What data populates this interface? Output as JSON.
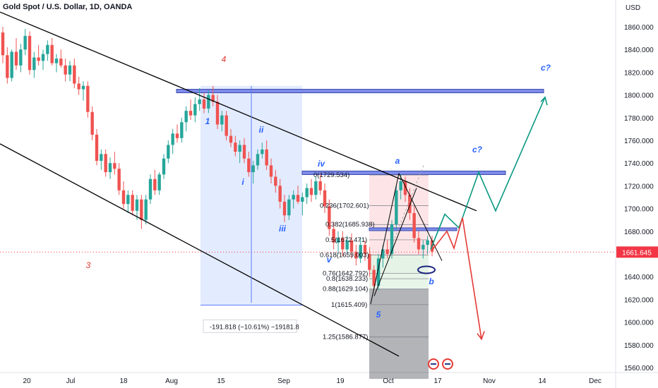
{
  "header": {
    "title": "Gold Spot / U.S. Dollar, 1D, OANDA"
  },
  "chart_data": {
    "type": "candlestick",
    "currency_label": "USD",
    "y_ticks": [
      1560,
      1580,
      1600,
      1620,
      1640,
      1660,
      1680,
      1700,
      1720,
      1740,
      1760,
      1780,
      1800,
      1820,
      1840,
      1860
    ],
    "y_tick_labels": [
      "1560.000",
      "1580.000",
      "1600.000",
      "1620.000",
      "1640.000",
      "1660.000",
      "1680.000",
      "1700.000",
      "1720.000",
      "1740.000",
      "1760.000",
      "1780.000",
      "1800.000",
      "1820.000",
      "1840.000",
      "1860.000"
    ],
    "x_ticks": [
      "20",
      "Jul",
      "18",
      "Aug",
      "15",
      "Sep",
      "19",
      "Oct",
      "17",
      "Nov",
      "14",
      "Dec"
    ],
    "current_price": "1661.645",
    "colors": {
      "up": "#26a69a",
      "down": "#ef5350",
      "price_tag": "#f23645",
      "axis_text": "#131722",
      "wave": "#2962ff",
      "red_wave": "#e53935",
      "teal": "#089981"
    },
    "ohlc": [
      [
        1855,
        1860,
        1828,
        1835
      ],
      [
        1835,
        1842,
        1810,
        1815
      ],
      [
        1815,
        1840,
        1812,
        1838
      ],
      [
        1838,
        1850,
        1822,
        1826
      ],
      [
        1826,
        1845,
        1820,
        1840
      ],
      [
        1840,
        1858,
        1835,
        1852
      ],
      [
        1852,
        1856,
        1818,
        1822
      ],
      [
        1822,
        1838,
        1815,
        1833
      ],
      [
        1833,
        1844,
        1826,
        1830
      ],
      [
        1830,
        1840,
        1822,
        1836
      ],
      [
        1836,
        1848,
        1830,
        1844
      ],
      [
        1844,
        1850,
        1826,
        1828
      ],
      [
        1828,
        1836,
        1820,
        1832
      ],
      [
        1832,
        1840,
        1824,
        1826
      ],
      [
        1826,
        1832,
        1812,
        1818
      ],
      [
        1818,
        1830,
        1812,
        1826
      ],
      [
        1826,
        1832,
        1806,
        1810
      ],
      [
        1810,
        1816,
        1800,
        1805
      ],
      [
        1805,
        1812,
        1795,
        1808
      ],
      [
        1808,
        1812,
        1780,
        1785
      ],
      [
        1785,
        1790,
        1760,
        1765
      ],
      [
        1765,
        1770,
        1738,
        1742
      ],
      [
        1742,
        1752,
        1734,
        1748
      ],
      [
        1748,
        1752,
        1728,
        1732
      ],
      [
        1732,
        1745,
        1726,
        1740
      ],
      [
        1740,
        1750,
        1730,
        1735
      ],
      [
        1735,
        1740,
        1712,
        1716
      ],
      [
        1716,
        1724,
        1700,
        1704
      ],
      [
        1704,
        1716,
        1696,
        1712
      ],
      [
        1712,
        1716,
        1694,
        1698
      ],
      [
        1698,
        1712,
        1690,
        1708
      ],
      [
        1708,
        1712,
        1682,
        1690
      ],
      [
        1690,
        1712,
        1686,
        1708
      ],
      [
        1708,
        1730,
        1704,
        1726
      ],
      [
        1726,
        1734,
        1712,
        1716
      ],
      [
        1716,
        1732,
        1712,
        1730
      ],
      [
        1730,
        1748,
        1726,
        1744
      ],
      [
        1744,
        1760,
        1740,
        1756
      ],
      [
        1756,
        1770,
        1748,
        1766
      ],
      [
        1766,
        1774,
        1758,
        1762
      ],
      [
        1762,
        1780,
        1758,
        1776
      ],
      [
        1776,
        1790,
        1768,
        1786
      ],
      [
        1786,
        1796,
        1778,
        1782
      ],
      [
        1782,
        1798,
        1776,
        1792
      ],
      [
        1792,
        1806,
        1786,
        1796
      ],
      [
        1796,
        1802,
        1784,
        1788
      ],
      [
        1788,
        1804,
        1784,
        1800
      ],
      [
        1800,
        1808,
        1790,
        1794
      ],
      [
        1794,
        1800,
        1770,
        1774
      ],
      [
        1774,
        1786,
        1768,
        1782
      ],
      [
        1782,
        1786,
        1760,
        1764
      ],
      [
        1764,
        1770,
        1754,
        1758
      ],
      [
        1758,
        1764,
        1746,
        1750
      ],
      [
        1750,
        1760,
        1740,
        1756
      ],
      [
        1756,
        1762,
        1740,
        1744
      ],
      [
        1744,
        1750,
        1728,
        1732
      ],
      [
        1732,
        1742,
        1722,
        1738
      ],
      [
        1738,
        1752,
        1734,
        1748
      ],
      [
        1748,
        1758,
        1744,
        1752
      ],
      [
        1752,
        1760,
        1734,
        1738
      ],
      [
        1738,
        1744,
        1722,
        1728
      ],
      [
        1728,
        1734,
        1714,
        1720
      ],
      [
        1720,
        1726,
        1700,
        1706
      ],
      [
        1706,
        1712,
        1688,
        1694
      ],
      [
        1694,
        1712,
        1690,
        1708
      ],
      [
        1708,
        1716,
        1700,
        1712
      ],
      [
        1712,
        1720,
        1704,
        1706
      ],
      [
        1706,
        1714,
        1694,
        1710
      ],
      [
        1710,
        1722,
        1704,
        1718
      ],
      [
        1718,
        1726,
        1706,
        1712
      ],
      [
        1712,
        1728,
        1708,
        1724
      ],
      [
        1724,
        1730,
        1712,
        1716
      ],
      [
        1716,
        1722,
        1696,
        1702
      ],
      [
        1702,
        1708,
        1676,
        1682
      ],
      [
        1682,
        1688,
        1664,
        1670
      ],
      [
        1670,
        1680,
        1660,
        1674
      ],
      [
        1674,
        1680,
        1658,
        1664
      ],
      [
        1664,
        1676,
        1660,
        1672
      ],
      [
        1672,
        1678,
        1656,
        1662
      ],
      [
        1662,
        1668,
        1650,
        1656
      ],
      [
        1656,
        1674,
        1652,
        1668
      ],
      [
        1668,
        1672,
        1654,
        1660
      ],
      [
        1660,
        1666,
        1640,
        1646
      ],
      [
        1646,
        1650,
        1628,
        1632
      ],
      [
        1632,
        1660,
        1628,
        1656
      ],
      [
        1656,
        1668,
        1648,
        1664
      ],
      [
        1664,
        1672,
        1656,
        1660
      ],
      [
        1660,
        1690,
        1656,
        1686
      ],
      [
        1686,
        1720,
        1682,
        1716
      ],
      [
        1716,
        1730,
        1708,
        1724
      ],
      [
        1724,
        1728,
        1706,
        1712
      ],
      [
        1712,
        1718,
        1690,
        1696
      ],
      [
        1696,
        1702,
        1670,
        1674
      ],
      [
        1674,
        1680,
        1660,
        1664
      ],
      [
        1664,
        1672,
        1656,
        1668
      ],
      [
        1668,
        1676,
        1660,
        1672
      ],
      [
        1672,
        1676,
        1658,
        1662
      ]
    ],
    "annotations": {
      "waves_blue": [
        "1",
        "i",
        "ii",
        "iii",
        "iv",
        "v",
        "5",
        "a",
        "b",
        "c?",
        "c?"
      ],
      "waves_red": [
        "4",
        "3"
      ],
      "measure_label": "-191.818 (−10.61%) −19181.8",
      "fib_levels": [
        {
          "label": "0(1729.534)",
          "price": 1729.534
        },
        {
          "label": "0.236(1702.601)",
          "price": 1702.601
        },
        {
          "label": "0.382(1685.938)",
          "price": 1685.938
        },
        {
          "label": "0.5(1672.471)",
          "price": 1672.471
        },
        {
          "label": "0.618(1659.003)",
          "price": 1659.003
        },
        {
          "label": "0.76(1642.792)",
          "price": 1642.792
        },
        {
          "label": "0.8(1638.233)",
          "price": 1638.233
        },
        {
          "label": "0.88(1629.104)",
          "price": 1629.104
        },
        {
          "label": "1(1615.409)",
          "price": 1615.409
        },
        {
          "label": "1.25(1586.877)",
          "price": 1586.877
        }
      ]
    }
  }
}
